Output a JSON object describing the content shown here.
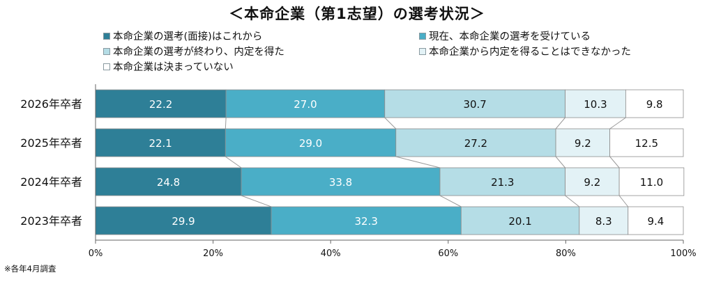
{
  "chart_data": {
    "type": "bar",
    "orientation": "horizontal",
    "stacked": true,
    "title": "＜本命企業（第1志望）の選考状況＞",
    "categories": [
      "2026年卒者",
      "2025年卒者",
      "2024年卒者",
      "2023年卒者"
    ],
    "series": [
      {
        "name": "本命企業の選考(面接)はこれから",
        "color": "#2e7f97",
        "values": [
          22.2,
          22.1,
          24.8,
          29.9
        ]
      },
      {
        "name": "現在、本命企業の選考を受けている",
        "color": "#4aaec7",
        "values": [
          27.0,
          29.0,
          33.8,
          32.3
        ]
      },
      {
        "name": "本命企業の選考が終わり、内定を得た",
        "color": "#b5dde6",
        "values": [
          30.7,
          27.2,
          21.3,
          20.1
        ]
      },
      {
        "name": "本命企業から内定を得ることはできなかった",
        "color": "#e3f2f6",
        "values": [
          10.3,
          9.2,
          9.2,
          8.3
        ]
      },
      {
        "name": "本命企業は決まっていない",
        "color": "#ffffff",
        "values": [
          9.8,
          12.5,
          11.0,
          9.4
        ]
      }
    ],
    "xlim": [
      0,
      100
    ],
    "xticks": [
      "0%",
      "20%",
      "40%",
      "60%",
      "80%",
      "100%"
    ],
    "legend_position": "top",
    "note": "※各年4月調査"
  }
}
